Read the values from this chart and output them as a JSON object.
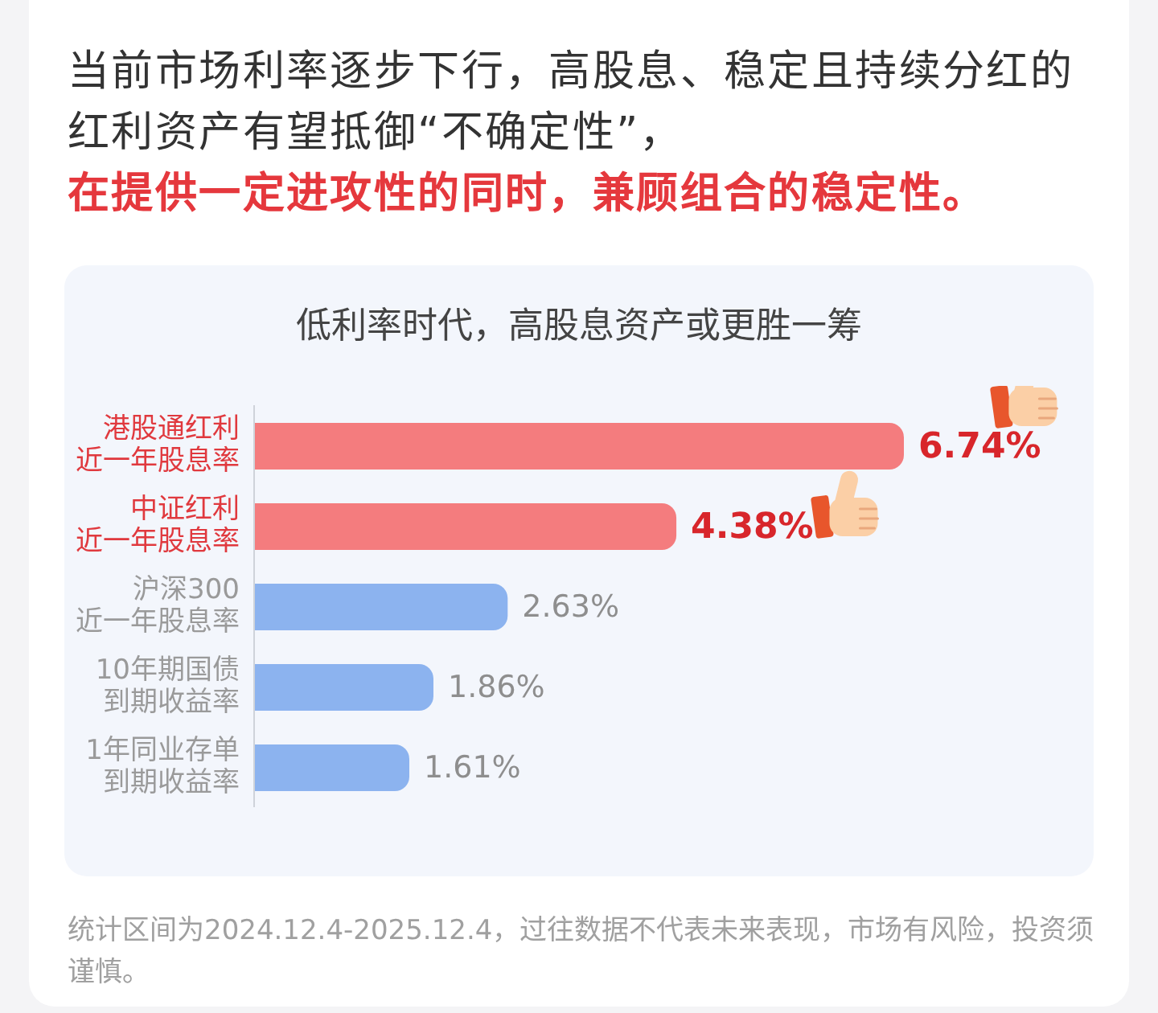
{
  "chart_data": {
    "type": "bar",
    "orientation": "horizontal",
    "title": "低利率时代，高股息资产或更胜一筹",
    "categories": [
      "港股通红利近一年股息率",
      "中证红利近一年股息率",
      "沪深300近一年股息率",
      "10年期国债到期收益率",
      "1年同业存单到期收益率"
    ],
    "values": [
      6.74,
      4.38,
      2.63,
      1.86,
      1.61
    ],
    "colors": [
      "#f47c7e",
      "#f47c7e",
      "#8cb3ef",
      "#8cb3ef",
      "#8cb3ef"
    ],
    "value_labels": [
      "6.74%",
      "4.38%",
      "2.63%",
      "1.86%",
      "1.61%"
    ],
    "tick_labels": "y",
    "annotations": [
      "当前市场利率逐步下行，高股息、稳定且持续分红的红利资产有望抵御“不确定性”，",
      "在提供一定进攻性的同时，兼顾组合的稳定性。",
      "统计区间为2024.12.4-2025.12.4，过往数据不代表未来表现，市场有风险，投资须谨慎。"
    ]
  }
}
